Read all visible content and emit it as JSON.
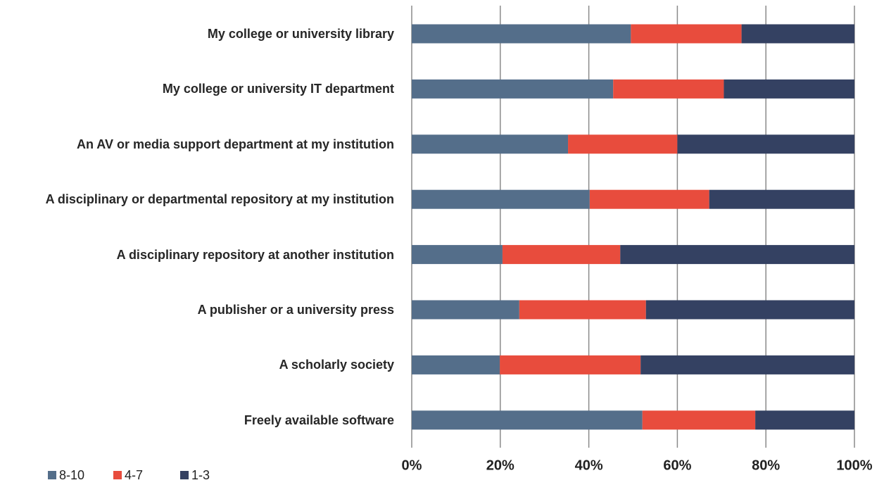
{
  "chart_data": {
    "type": "stacked-bar-horizontal",
    "categories": [
      "My college or university library",
      "My college or university IT department",
      "An AV or media support department at my institution",
      "A disciplinary or departmental repository at my institution",
      "A disciplinary repository at another institution",
      "A publisher or a university press",
      "A scholarly society",
      "Freely available software"
    ],
    "series": [
      {
        "name": "8-10",
        "color": "#546e8a",
        "values": [
          49.5,
          45.5,
          35.3,
          40.2,
          20.5,
          24.3,
          19.9,
          52.1
        ]
      },
      {
        "name": "4-7",
        "color": "#e84c3d",
        "values": [
          25,
          25,
          24.7,
          27,
          26.6,
          28.6,
          31.8,
          25.5
        ]
      },
      {
        "name": "1-3",
        "color": "#344162",
        "values": [
          25.5,
          29.5,
          40,
          32.8,
          52.9,
          47.1,
          48.3,
          22.4
        ]
      }
    ],
    "xlim": [
      0,
      100
    ],
    "xticks": [
      {
        "value": 0,
        "label": "0%"
      },
      {
        "value": 20,
        "label": "20%"
      },
      {
        "value": 40,
        "label": "40%"
      },
      {
        "value": 60,
        "label": "60%"
      },
      {
        "value": 80,
        "label": "80%"
      },
      {
        "value": 100,
        "label": "100%"
      }
    ],
    "grid": true,
    "legend": "bottom-left"
  }
}
